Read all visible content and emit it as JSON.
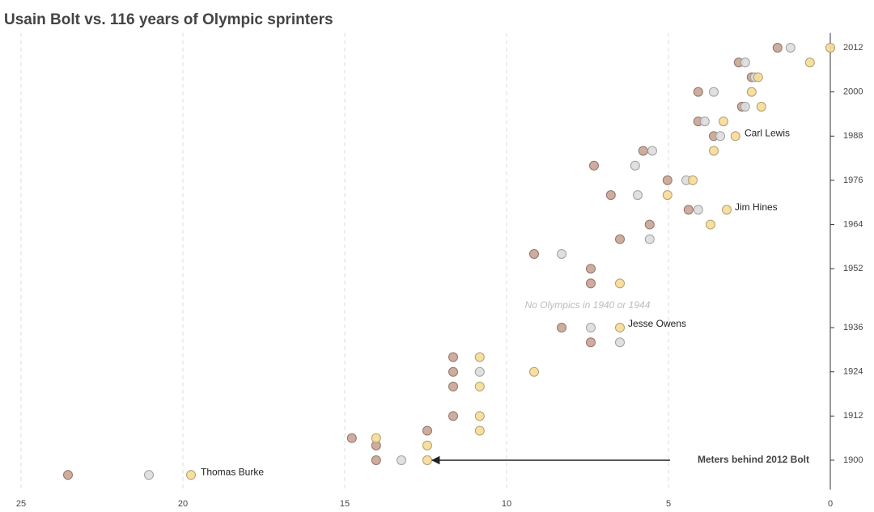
{
  "chart_data": {
    "type": "scatter",
    "title": "Usain Bolt vs. 116 years of Olympic sprinters",
    "xlim": [
      25,
      0
    ],
    "xticks": [
      25,
      20,
      15,
      10,
      5,
      0
    ],
    "ylim": [
      1892,
      2016
    ],
    "yticks": [
      1900,
      1912,
      1924,
      1936,
      1952,
      1964,
      1976,
      1988,
      2000,
      2012
    ],
    "grid": true,
    "series": [
      {
        "color": "#c9a393",
        "x": [
          23.55,
          14.03,
          14.03,
          14.78,
          12.45,
          11.65,
          11.65,
          11.65,
          11.65,
          7.4,
          8.3,
          7.4,
          7.4,
          9.15,
          6.5,
          5.58,
          4.38,
          6.78,
          5.03,
          7.3,
          5.78,
          3.6,
          4.08,
          2.73,
          4.08,
          2.43,
          2.83,
          1.63
        ],
        "y": [
          1896,
          1900,
          1904,
          1906,
          1908,
          1912,
          1920,
          1924,
          1928,
          1932,
          1936,
          1948,
          1952,
          1956,
          1960,
          1964,
          1968,
          1972,
          1976,
          1980,
          1984,
          1988,
          1992,
          1996,
          2000,
          2004,
          2008,
          2012
        ]
      },
      {
        "color": "#dddddd",
        "x": [
          21.05,
          13.25,
          10.83,
          6.5,
          7.4,
          8.3,
          5.58,
          4.08,
          5.95,
          4.45,
          6.03,
          5.5,
          3.4,
          3.88,
          2.63,
          3.6,
          2.33,
          2.63,
          1.23
        ],
        "y": [
          1896,
          1900,
          1924,
          1932,
          1936,
          1956,
          1960,
          1968,
          1972,
          1976,
          1980,
          1984,
          1988,
          1992,
          1996,
          2000,
          2004,
          2008,
          2012
        ]
      },
      {
        "color": "#f6dc97",
        "x": [
          19.75,
          12.45,
          12.45,
          14.03,
          10.83,
          10.83,
          10.83,
          9.15,
          10.83,
          6.5,
          6.5,
          3.7,
          3.2,
          5.03,
          4.25,
          3.6,
          2.93,
          3.3,
          2.13,
          2.43,
          2.23,
          0.63,
          0
        ],
        "y": [
          1896,
          1900,
          1904,
          1906,
          1908,
          1912,
          1920,
          1924,
          1928,
          1936,
          1948,
          1964,
          1968,
          1972,
          1976,
          1984,
          1988,
          1992,
          1996,
          2000,
          2004,
          2008,
          2012
        ]
      }
    ],
    "annotations": [
      {
        "text": "Thomas Burke",
        "x": 19.45,
        "y": 1896.6
      },
      {
        "text": "Jesse Owens",
        "x": 6.25,
        "y": 1936.9
      },
      {
        "text": "Jim Hines",
        "x": 2.95,
        "y": 1968.6
      },
      {
        "text": "Carl Lewis",
        "x": 2.65,
        "y": 1988.6
      },
      {
        "text": "No Olympics in 1940 or 1944",
        "x": 7.5,
        "y": 1942
      }
    ],
    "arrow_label": {
      "text": "Meters behind 2012 Bolt",
      "x": 12.3,
      "y": 1900
    }
  }
}
